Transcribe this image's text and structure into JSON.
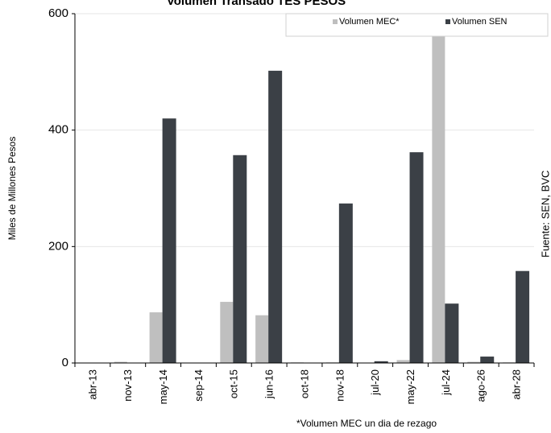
{
  "chart_data": {
    "type": "bar",
    "title": "Volumen Transado TES PESOS",
    "y_label": "Miles de Millones Pesos",
    "source": "Fuente: SEN, BVC",
    "footnote": "*Volumen MEC un dia de rezago",
    "categories": [
      "abr-13",
      "nov-13",
      "may-14",
      "sep-14",
      "oct-15",
      "jun-16",
      "oct-18",
      "nov-18",
      "jul-20",
      "may-22",
      "jul-24",
      "ago-26",
      "abr-28"
    ],
    "series": [
      {
        "name": "Volumen MEC*",
        "color": "#bfbfbf",
        "values": [
          0,
          2,
          87,
          0,
          105,
          82,
          1,
          1,
          0,
          5,
          650,
          2,
          1
        ]
      },
      {
        "name": "Volumen SEN",
        "color": "#3b4046",
        "values": [
          0,
          0,
          420,
          0,
          357,
          502,
          0,
          274,
          3,
          362,
          102,
          11,
          158
        ]
      }
    ],
    "ylim": [
      0,
      600
    ],
    "yticks": [
      0,
      200,
      400,
      600
    ],
    "grid": true,
    "legend": "top-right"
  }
}
